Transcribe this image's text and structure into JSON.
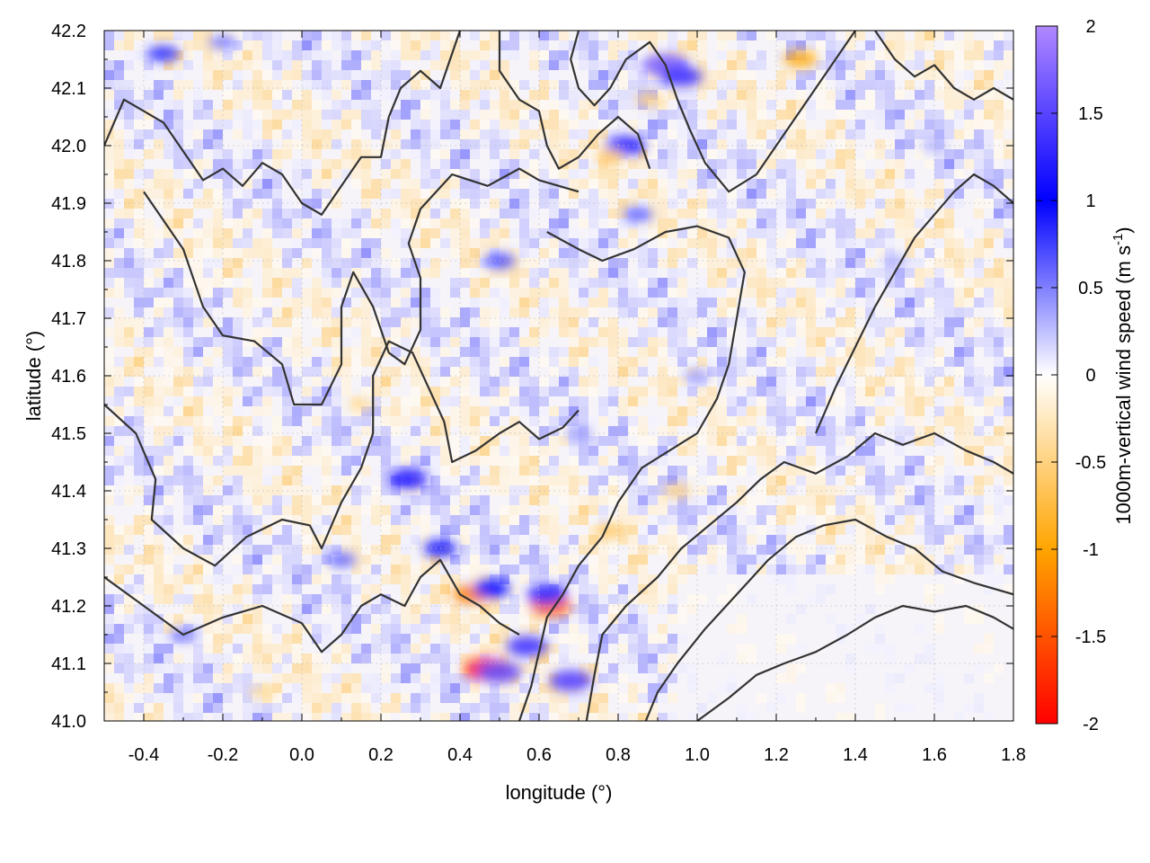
{
  "chart_data": {
    "type": "heatmap",
    "title": "",
    "xlabel": "longitude (°)",
    "ylabel": "latitude (°)",
    "colorbar_label": "1000m-vertical wind speed (m s",
    "colorbar_label_exp": "-1",
    "colorbar_label_close": ")",
    "xlim": [
      -0.5,
      1.8
    ],
    "ylim": [
      41.0,
      42.2
    ],
    "clim": [
      -2,
      2
    ],
    "x_ticks": [
      -0.4,
      -0.2,
      0.0,
      0.2,
      0.4,
      0.6,
      0.8,
      1.0,
      1.2,
      1.4,
      1.6,
      1.8
    ],
    "x_tick_labels": [
      "-0.4",
      "-0.2",
      "0.0",
      "0.2",
      "0.4",
      "0.6",
      "0.8",
      "1.0",
      "1.2",
      "1.4",
      "1.6",
      "1.8"
    ],
    "y_ticks": [
      41.0,
      41.1,
      41.2,
      41.3,
      41.4,
      41.5,
      41.6,
      41.7,
      41.8,
      41.9,
      42.0,
      42.1,
      42.2
    ],
    "y_tick_labels": [
      "41.0",
      "41.1",
      "41.2",
      "41.3",
      "41.4",
      "41.5",
      "41.6",
      "41.7",
      "41.8",
      "41.9",
      "42.0",
      "42.1",
      "42.2"
    ],
    "colorbar_ticks": [
      2,
      1.5,
      1,
      0.5,
      0,
      -0.5,
      -1,
      -1.5,
      -2
    ],
    "colorbar_tick_labels": [
      "2",
      "1.5",
      "1",
      "0.5",
      "0",
      "-0.5",
      "-1",
      "-1.5",
      "-2"
    ],
    "colormap": [
      {
        "value": -2,
        "color": "#ff0000"
      },
      {
        "value": -1,
        "color": "#ffa500"
      },
      {
        "value": 0,
        "color": "#ffffff"
      },
      {
        "value": 1,
        "color": "#0000ff"
      },
      {
        "value": 2,
        "color": "#b088ff"
      }
    ],
    "grid": true,
    "contour_color": "#333333",
    "hotspots": [
      {
        "x": 0.47,
        "y": 41.09,
        "value": -1.8
      },
      {
        "x": 0.5,
        "y": 41.085,
        "value": 1.6
      },
      {
        "x": 0.68,
        "y": 41.07,
        "value": 1.5
      },
      {
        "x": 0.63,
        "y": 41.2,
        "value": -1.4
      },
      {
        "x": 0.62,
        "y": 41.22,
        "value": 1.3
      },
      {
        "x": 0.57,
        "y": 41.13,
        "value": 1.4
      },
      {
        "x": 0.43,
        "y": 41.22,
        "value": -1.2
      },
      {
        "x": 0.48,
        "y": 41.23,
        "value": 1.1
      },
      {
        "x": 0.27,
        "y": 41.42,
        "value": 1.2
      },
      {
        "x": 0.35,
        "y": 41.3,
        "value": 0.9
      },
      {
        "x": 0.92,
        "y": 42.14,
        "value": 1.7
      },
      {
        "x": 0.96,
        "y": 42.12,
        "value": 1.4
      },
      {
        "x": 0.82,
        "y": 42.0,
        "value": 1.3
      },
      {
        "x": 0.78,
        "y": 41.98,
        "value": -0.6
      },
      {
        "x": 0.88,
        "y": 42.08,
        "value": -0.5
      },
      {
        "x": 0.5,
        "y": 41.8,
        "value": 0.7
      },
      {
        "x": 0.85,
        "y": 41.88,
        "value": 0.6
      },
      {
        "x": 1.26,
        "y": 42.15,
        "value": -0.9
      },
      {
        "x": -0.35,
        "y": 42.16,
        "value": 0.8
      },
      {
        "x": -0.2,
        "y": 42.18,
        "value": 0.5
      },
      {
        "x": 0.15,
        "y": 41.55,
        "value": -0.4
      },
      {
        "x": 0.7,
        "y": 41.5,
        "value": 0.4
      },
      {
        "x": 0.95,
        "y": 41.4,
        "value": -0.5
      },
      {
        "x": 1.5,
        "y": 41.8,
        "value": 0.3
      },
      {
        "x": -0.3,
        "y": 41.15,
        "value": 0.5
      },
      {
        "x": 0.1,
        "y": 41.28,
        "value": 0.6
      },
      {
        "x": -0.1,
        "y": 41.05,
        "value": -0.4
      },
      {
        "x": 0.78,
        "y": 41.33,
        "value": -0.6
      },
      {
        "x": 1.0,
        "y": 41.6,
        "value": 0.4
      },
      {
        "x": 1.6,
        "y": 42.0,
        "value": 0.3
      }
    ],
    "contours": [
      [
        [
          -0.5,
          42.0
        ],
        [
          -0.45,
          42.08
        ],
        [
          -0.4,
          42.06
        ],
        [
          -0.35,
          42.04
        ],
        [
          -0.3,
          41.99
        ],
        [
          -0.25,
          41.94
        ],
        [
          -0.2,
          41.96
        ],
        [
          -0.15,
          41.93
        ],
        [
          -0.1,
          41.97
        ],
        [
          -0.05,
          41.95
        ],
        [
          0.0,
          41.9
        ],
        [
          0.05,
          41.88
        ],
        [
          0.1,
          41.93
        ],
        [
          0.15,
          41.98
        ],
        [
          0.2,
          41.98
        ],
        [
          0.22,
          42.05
        ],
        [
          0.25,
          42.1
        ],
        [
          0.3,
          42.13
        ],
        [
          0.35,
          42.1
        ],
        [
          0.38,
          42.16
        ],
        [
          0.4,
          42.2
        ]
      ],
      [
        [
          -0.4,
          41.92
        ],
        [
          -0.3,
          41.82
        ],
        [
          -0.25,
          41.72
        ],
        [
          -0.2,
          41.67
        ],
        [
          -0.12,
          41.66
        ],
        [
          -0.05,
          41.62
        ],
        [
          -0.02,
          41.55
        ],
        [
          0.05,
          41.55
        ],
        [
          0.1,
          41.62
        ],
        [
          0.1,
          41.72
        ],
        [
          0.13,
          41.78
        ],
        [
          0.18,
          41.72
        ],
        [
          0.22,
          41.64
        ],
        [
          0.26,
          41.62
        ],
        [
          0.3,
          41.68
        ],
        [
          0.3,
          41.77
        ],
        [
          0.27,
          41.83
        ],
        [
          0.3,
          41.89
        ],
        [
          0.38,
          41.95
        ],
        [
          0.47,
          41.93
        ],
        [
          0.55,
          41.96
        ],
        [
          0.6,
          41.94
        ],
        [
          0.65,
          41.93
        ],
        [
          0.7,
          41.92
        ]
      ],
      [
        [
          -0.5,
          41.55
        ],
        [
          -0.42,
          41.5
        ],
        [
          -0.37,
          41.42
        ],
        [
          -0.38,
          41.35
        ],
        [
          -0.3,
          41.3
        ],
        [
          -0.22,
          41.27
        ],
        [
          -0.14,
          41.32
        ],
        [
          -0.05,
          41.35
        ],
        [
          0.02,
          41.34
        ],
        [
          0.05,
          41.3
        ],
        [
          0.1,
          41.38
        ],
        [
          0.15,
          41.44
        ],
        [
          0.18,
          41.5
        ],
        [
          0.18,
          41.6
        ],
        [
          0.22,
          41.66
        ],
        [
          0.28,
          41.64
        ],
        [
          0.32,
          41.58
        ],
        [
          0.36,
          41.52
        ],
        [
          0.38,
          41.45
        ],
        [
          0.44,
          41.47
        ],
        [
          0.5,
          41.5
        ],
        [
          0.55,
          41.52
        ],
        [
          0.6,
          41.49
        ],
        [
          0.66,
          41.51
        ],
        [
          0.7,
          41.54
        ]
      ],
      [
        [
          -0.5,
          41.25
        ],
        [
          -0.4,
          41.2
        ],
        [
          -0.3,
          41.15
        ],
        [
          -0.2,
          41.18
        ],
        [
          -0.1,
          41.2
        ],
        [
          0.0,
          41.17
        ],
        [
          0.05,
          41.12
        ],
        [
          0.1,
          41.15
        ],
        [
          0.15,
          41.2
        ],
        [
          0.2,
          41.22
        ],
        [
          0.26,
          41.2
        ],
        [
          0.3,
          41.25
        ],
        [
          0.35,
          41.28
        ],
        [
          0.4,
          41.22
        ],
        [
          0.45,
          41.2
        ],
        [
          0.5,
          41.17
        ],
        [
          0.55,
          41.15
        ]
      ],
      [
        [
          0.55,
          41.0
        ],
        [
          0.58,
          41.06
        ],
        [
          0.6,
          41.12
        ],
        [
          0.62,
          41.18
        ],
        [
          0.66,
          41.22
        ],
        [
          0.7,
          41.27
        ],
        [
          0.76,
          41.32
        ],
        [
          0.8,
          41.38
        ],
        [
          0.86,
          41.44
        ],
        [
          0.93,
          41.47
        ],
        [
          1.0,
          41.5
        ],
        [
          1.05,
          41.56
        ],
        [
          1.08,
          41.62
        ],
        [
          1.1,
          41.7
        ],
        [
          1.12,
          41.78
        ],
        [
          1.08,
          41.84
        ],
        [
          1.0,
          41.86
        ],
        [
          0.92,
          41.85
        ],
        [
          0.84,
          41.82
        ],
        [
          0.76,
          41.8
        ],
        [
          0.7,
          41.82
        ],
        [
          0.62,
          41.85
        ]
      ],
      [
        [
          0.72,
          41.0
        ],
        [
          0.74,
          41.08
        ],
        [
          0.76,
          41.15
        ],
        [
          0.82,
          41.2
        ],
        [
          0.9,
          41.25
        ],
        [
          0.96,
          41.3
        ],
        [
          1.03,
          41.34
        ],
        [
          1.1,
          41.38
        ],
        [
          1.16,
          41.42
        ],
        [
          1.22,
          41.45
        ],
        [
          1.3,
          41.43
        ],
        [
          1.38,
          41.46
        ],
        [
          1.45,
          41.5
        ],
        [
          1.52,
          41.48
        ],
        [
          1.6,
          41.5
        ],
        [
          1.68,
          41.47
        ],
        [
          1.75,
          41.45
        ],
        [
          1.8,
          41.43
        ]
      ],
      [
        [
          0.87,
          41.0
        ],
        [
          0.9,
          41.05
        ],
        [
          0.95,
          41.1
        ],
        [
          1.02,
          41.16
        ],
        [
          1.1,
          41.22
        ],
        [
          1.18,
          41.28
        ],
        [
          1.25,
          41.32
        ],
        [
          1.32,
          41.34
        ],
        [
          1.4,
          41.35
        ],
        [
          1.48,
          41.32
        ],
        [
          1.55,
          41.3
        ],
        [
          1.62,
          41.26
        ],
        [
          1.7,
          41.24
        ],
        [
          1.8,
          41.22
        ]
      ],
      [
        [
          1.0,
          41.0
        ],
        [
          1.08,
          41.04
        ],
        [
          1.15,
          41.08
        ],
        [
          1.22,
          41.1
        ],
        [
          1.3,
          41.12
        ],
        [
          1.38,
          41.15
        ],
        [
          1.45,
          41.18
        ],
        [
          1.52,
          41.2
        ],
        [
          1.6,
          41.19
        ],
        [
          1.68,
          41.2
        ],
        [
          1.75,
          41.18
        ],
        [
          1.8,
          41.16
        ]
      ],
      [
        [
          0.7,
          42.2
        ],
        [
          0.68,
          42.15
        ],
        [
          0.7,
          42.1
        ],
        [
          0.74,
          42.07
        ],
        [
          0.78,
          42.1
        ],
        [
          0.82,
          42.15
        ],
        [
          0.88,
          42.18
        ],
        [
          0.92,
          42.14
        ],
        [
          0.95,
          42.08
        ],
        [
          0.98,
          42.03
        ],
        [
          1.02,
          41.97
        ],
        [
          1.08,
          41.92
        ],
        [
          1.15,
          41.95
        ],
        [
          1.2,
          42.0
        ],
        [
          1.25,
          42.05
        ],
        [
          1.3,
          42.1
        ],
        [
          1.35,
          42.15
        ],
        [
          1.4,
          42.2
        ]
      ],
      [
        [
          1.3,
          41.5
        ],
        [
          1.35,
          41.58
        ],
        [
          1.4,
          41.65
        ],
        [
          1.45,
          41.72
        ],
        [
          1.5,
          41.78
        ],
        [
          1.55,
          41.84
        ],
        [
          1.6,
          41.88
        ],
        [
          1.65,
          41.92
        ],
        [
          1.7,
          41.95
        ],
        [
          1.75,
          41.93
        ],
        [
          1.8,
          41.9
        ]
      ],
      [
        [
          0.5,
          42.2
        ],
        [
          0.5,
          42.13
        ],
        [
          0.55,
          42.08
        ],
        [
          0.6,
          42.06
        ],
        [
          0.62,
          42.0
        ],
        [
          0.65,
          41.96
        ],
        [
          0.7,
          41.98
        ],
        [
          0.75,
          42.02
        ],
        [
          0.8,
          42.05
        ],
        [
          0.85,
          42.02
        ],
        [
          0.88,
          41.96
        ]
      ],
      [
        [
          1.45,
          42.2
        ],
        [
          1.5,
          42.15
        ],
        [
          1.55,
          42.12
        ],
        [
          1.6,
          42.14
        ],
        [
          1.65,
          42.1
        ],
        [
          1.7,
          42.08
        ],
        [
          1.75,
          42.1
        ],
        [
          1.8,
          42.08
        ]
      ]
    ]
  }
}
